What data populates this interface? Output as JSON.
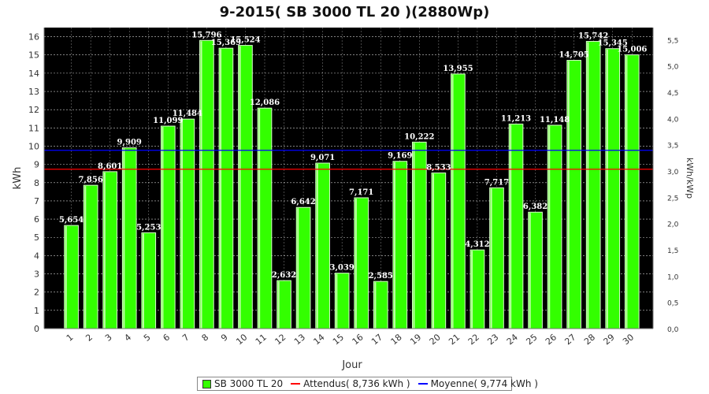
{
  "chart_data": {
    "type": "bar",
    "title": "9-2015( SB 3000 TL 20 )(2880Wp)",
    "xlabel": "Jour",
    "ylabel": "kWh",
    "ylabel_right": "kWh/kWp",
    "categories": [
      "1",
      "2",
      "3",
      "4",
      "5",
      "6",
      "7",
      "8",
      "9",
      "10",
      "11",
      "12",
      "13",
      "14",
      "15",
      "16",
      "17",
      "18",
      "19",
      "20",
      "21",
      "22",
      "23",
      "24",
      "25",
      "26",
      "27",
      "28",
      "29",
      "30"
    ],
    "series": [
      {
        "name": "SB 3000 TL 20",
        "values": [
          5.654,
          7.856,
          8.601,
          9.909,
          5.253,
          11.099,
          11.484,
          15.796,
          15.369,
          15.524,
          12.086,
          2.632,
          6.642,
          9.071,
          3.039,
          7.171,
          2.585,
          9.169,
          10.222,
          8.533,
          13.955,
          4.312,
          7.717,
          11.213,
          6.382,
          11.148,
          14.705,
          15.742,
          15.345,
          15.006
        ],
        "labels": [
          "5,654",
          "7,856",
          "8,601",
          "9,909",
          "5,253",
          "11,099",
          "11,484",
          "15,796",
          "15,369",
          "15,524",
          "12,086",
          "2,632",
          "6,642",
          "9,071",
          "3,039",
          "7,171",
          "2,585",
          "9,169",
          "10,222",
          "8,533",
          "13,955",
          "4,312",
          "7,717",
          "11,213",
          "6,382",
          "11,148",
          "14,705",
          "15,742",
          "15,345",
          "15,006"
        ]
      }
    ],
    "reference_lines": [
      {
        "name": "Attendus",
        "value": 8.736,
        "color": "#ff0000"
      },
      {
        "name": "Moyenne",
        "value": 9.774,
        "color": "#0000ff"
      }
    ],
    "ylim": [
      0,
      16.5
    ],
    "yticks": [
      0,
      1,
      2,
      3,
      4,
      5,
      6,
      7,
      8,
      9,
      10,
      11,
      12,
      13,
      14,
      15,
      16
    ],
    "y2lim": [
      0,
      5.729
    ],
    "y2ticks": [
      {
        "value": 0,
        "label": "0,0"
      },
      {
        "value": 0.5,
        "label": "0,5"
      },
      {
        "value": 1.0,
        "label": "1,0"
      },
      {
        "value": 1.5,
        "label": "1,5"
      },
      {
        "value": 2.0,
        "label": "2,0"
      },
      {
        "value": 2.5,
        "label": "2,5"
      },
      {
        "value": 3.0,
        "label": "3,0"
      },
      {
        "value": 3.5,
        "label": "3,5"
      },
      {
        "value": 4.0,
        "label": "4,0"
      },
      {
        "value": 4.5,
        "label": "4,5"
      },
      {
        "value": 5.0,
        "label": "5,0"
      },
      {
        "value": 5.5,
        "label": "5,5"
      }
    ],
    "grid": true,
    "legend_position": "bottom",
    "colors": {
      "bar": "#33ff00",
      "plot_bg": "#000000",
      "grid": "#ffffff",
      "label": "#ffffff"
    }
  },
  "legend": {
    "bar_label": "SB 3000 TL 20",
    "expected_label": "Attendus( 8,736 kWh )",
    "average_label": "Moyenne( 9,774 kWh )"
  }
}
